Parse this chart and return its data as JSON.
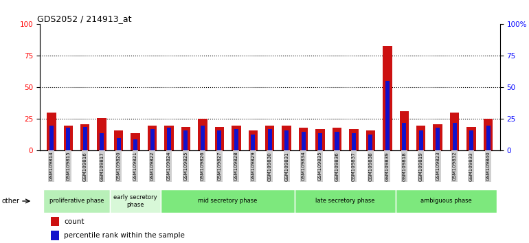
{
  "title": "GDS2052 / 214913_at",
  "categories": [
    "GSM109814",
    "GSM109815",
    "GSM109816",
    "GSM109817",
    "GSM109820",
    "GSM109821",
    "GSM109822",
    "GSM109824",
    "GSM109825",
    "GSM109826",
    "GSM109827",
    "GSM109828",
    "GSM109829",
    "GSM109830",
    "GSM109831",
    "GSM109834",
    "GSM109835",
    "GSM109836",
    "GSM109837",
    "GSM109838",
    "GSM109839",
    "GSM109818",
    "GSM109819",
    "GSM109823",
    "GSM109832",
    "GSM109833",
    "GSM109840"
  ],
  "red_values": [
    30,
    20,
    21,
    26,
    16,
    14,
    20,
    20,
    19,
    25,
    19,
    20,
    16,
    20,
    20,
    18,
    17,
    18,
    17,
    16,
    83,
    31,
    20,
    21,
    30,
    19,
    25
  ],
  "blue_values": [
    20,
    18,
    19,
    14,
    10,
    9,
    17,
    18,
    16,
    20,
    16,
    17,
    13,
    17,
    16,
    15,
    14,
    15,
    14,
    13,
    55,
    22,
    16,
    18,
    22,
    16,
    20
  ],
  "ylim": [
    0,
    100
  ],
  "yticks": [
    0,
    25,
    50,
    75,
    100
  ],
  "ytick_labels_right": [
    "0",
    "25",
    "50",
    "75",
    "100%"
  ],
  "phase_groups": [
    {
      "label": "proliferative phase",
      "start": 0,
      "end": 3,
      "color": "#b8f0b8"
    },
    {
      "label": "early secretory\nphase",
      "start": 4,
      "end": 6,
      "color": "#d8f8d8"
    },
    {
      "label": "mid secretory phase",
      "start": 7,
      "end": 14,
      "color": "#7de87d"
    },
    {
      "label": "late secretory phase",
      "start": 15,
      "end": 20,
      "color": "#7de87d"
    },
    {
      "label": "ambiguous phase",
      "start": 21,
      "end": 26,
      "color": "#7de87d"
    }
  ],
  "bar_color_red": "#cc1111",
  "bar_color_blue": "#1111cc",
  "tick_label_bg": "#d0d0d0",
  "other_label": "other",
  "background_color": "#ffffff",
  "legend_count": "count",
  "legend_percentile": "percentile rank within the sample"
}
